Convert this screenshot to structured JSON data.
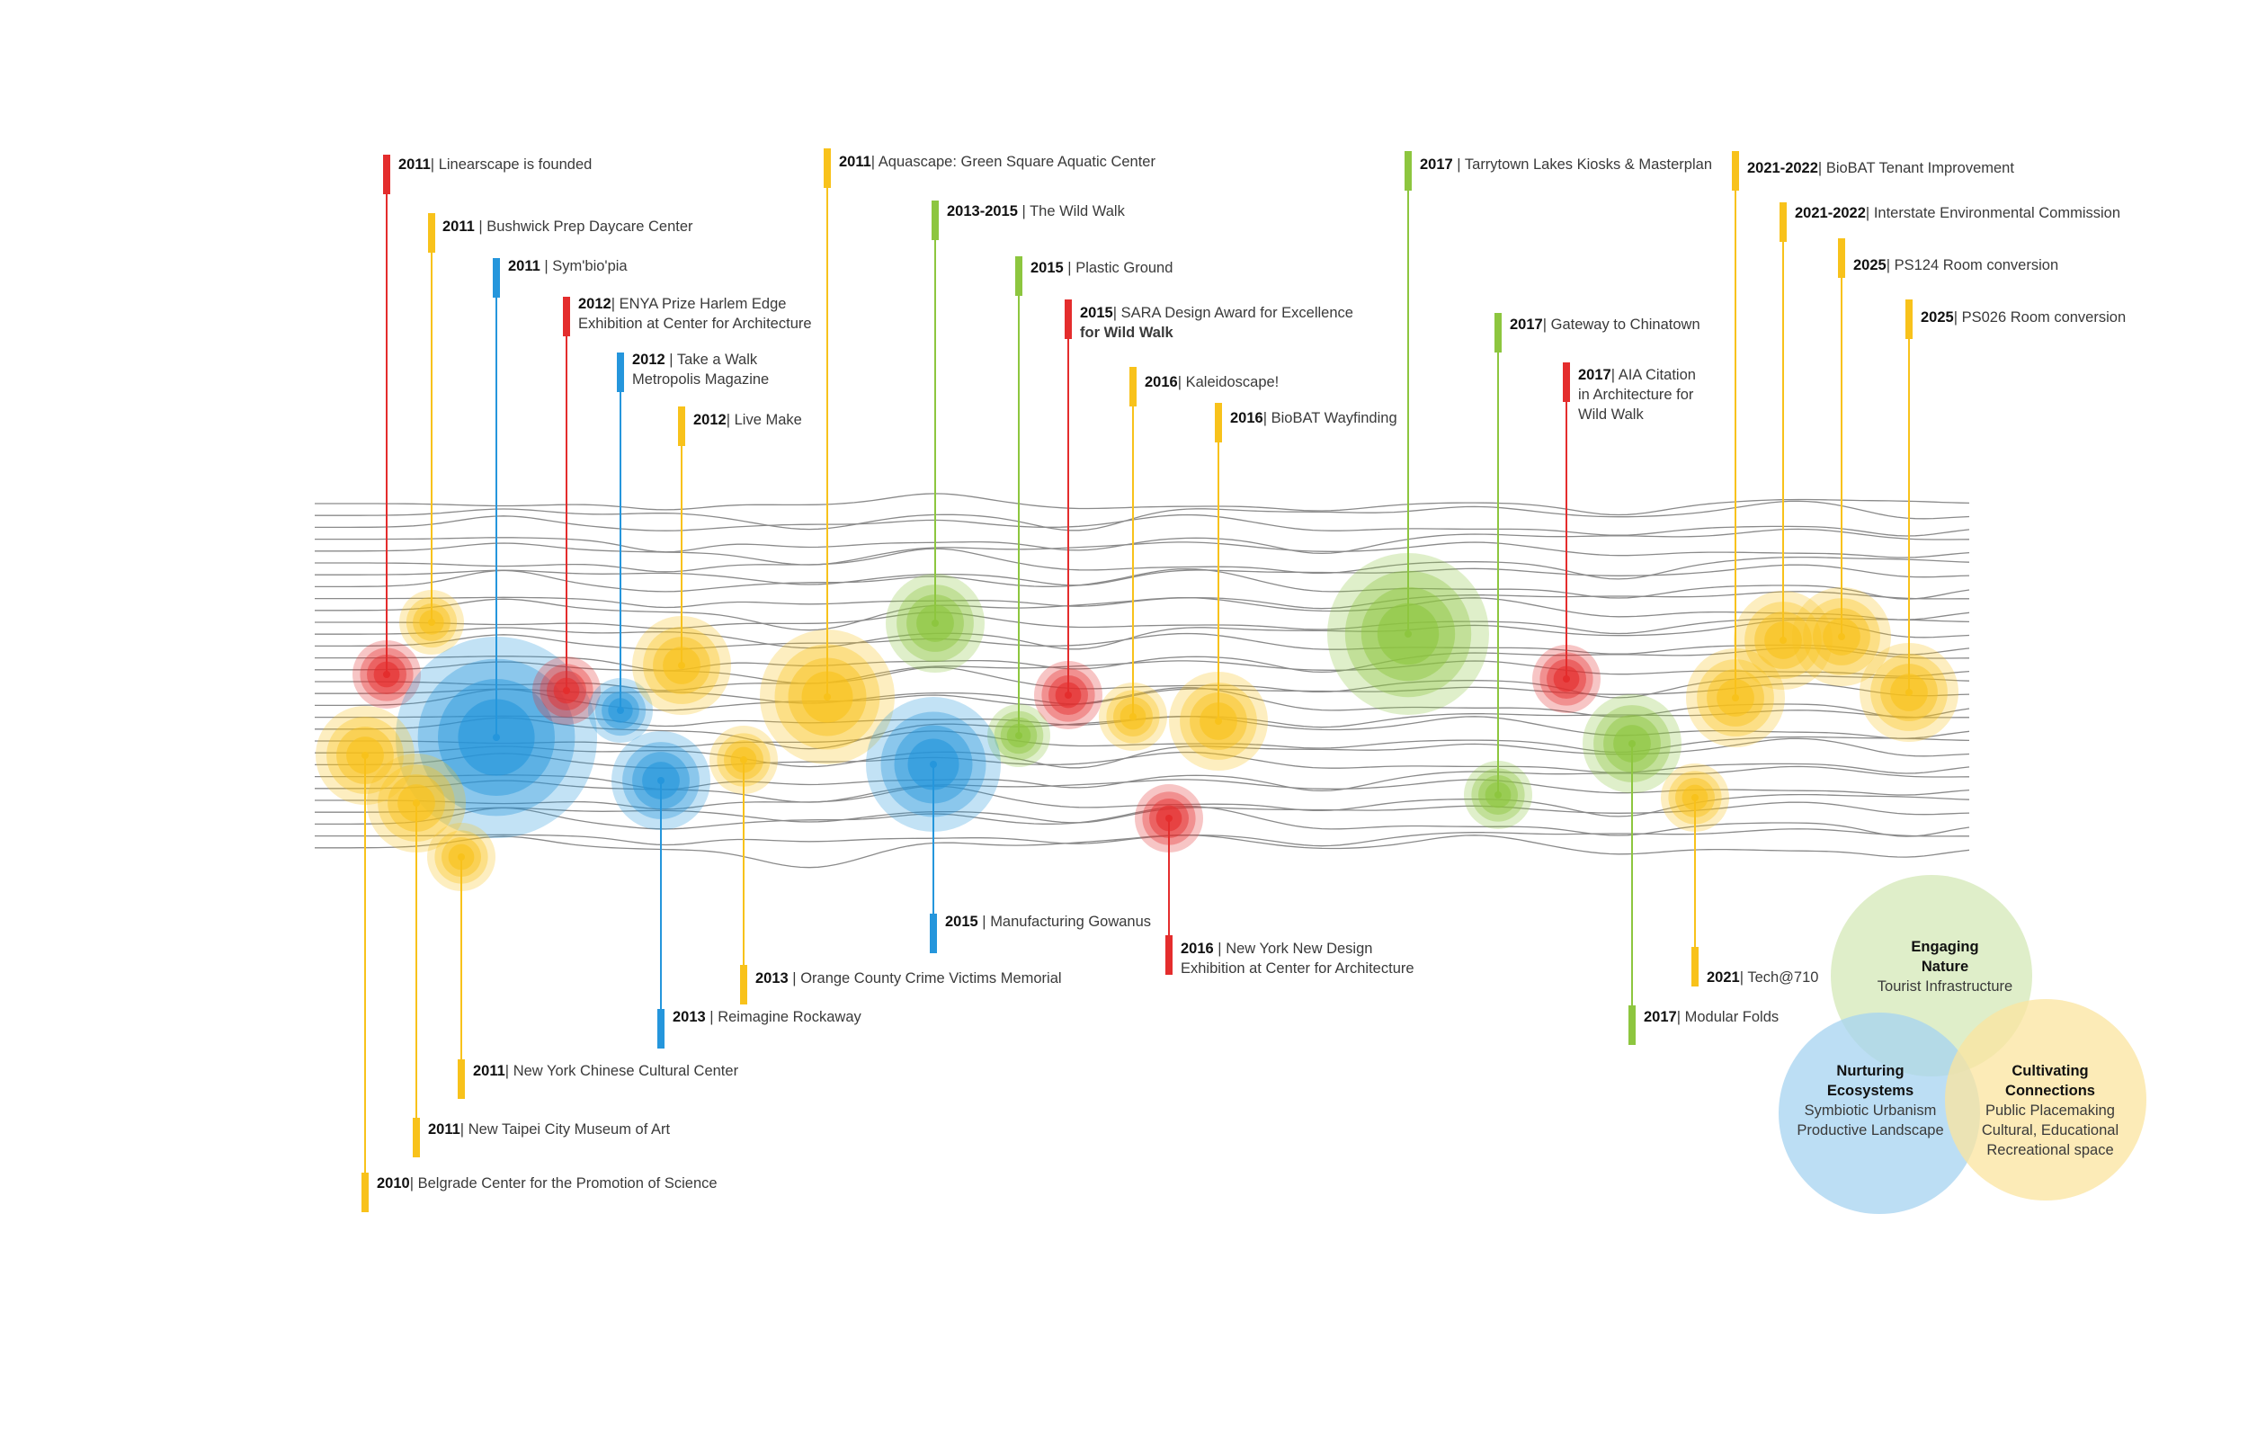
{
  "colors": {
    "red": "#e42d2d",
    "yellow": "#f8c21b",
    "blue": "#2596dc",
    "green": "#8dc63f",
    "stream": "#8a8a8a",
    "venn_green": "#d4e8b7",
    "venn_blue": "#a6d3f0",
    "venn_yellow": "#fbe49f"
  },
  "events": [
    {
      "id": "linearscape",
      "year": "2011",
      "sep": "|",
      "text": "Linearscape is founded",
      "color": "red"
    },
    {
      "id": "bushwick",
      "year": "2011",
      "sep": " |",
      "text": "Bushwick Prep Daycare Center",
      "color": "yellow"
    },
    {
      "id": "symbiopia",
      "year": "2011",
      "sep": " |",
      "text": "Sym'bio'pia",
      "color": "blue"
    },
    {
      "id": "enya",
      "year": "2012",
      "sep": "|",
      "text": "ENYA Prize Harlem Edge",
      "text2": "Exhibition at Center for Architecture",
      "color": "red"
    },
    {
      "id": "takewalk",
      "year": "2012",
      "sep": " |",
      "text": "Take a Walk",
      "text2": "Metropolis Magazine",
      "color": "blue"
    },
    {
      "id": "livemake",
      "year": "2012",
      "sep": "|",
      "text": "Live Make",
      "color": "yellow"
    },
    {
      "id": "aquascape",
      "year": "2011",
      "sep": "|",
      "text": "Aquascape: Green Square Aquatic Center",
      "color": "yellow"
    },
    {
      "id": "wildwalk",
      "year": "2013-2015",
      "sep": " |",
      "text": "The Wild Walk",
      "color": "green"
    },
    {
      "id": "plasticground",
      "year": "2015",
      "sep": " |",
      "text": "Plastic Ground",
      "color": "green"
    },
    {
      "id": "sara",
      "year": "2015",
      "sep": "|",
      "text": "SARA Design Award for Excellence",
      "text2": "for Wild Walk",
      "color": "red"
    },
    {
      "id": "kaleidoscape",
      "year": "2016",
      "sep": "|",
      "text": "Kaleidoscape!",
      "color": "yellow"
    },
    {
      "id": "biobatway",
      "year": "2016",
      "sep": "|",
      "text": "BioBAT Wayfinding",
      "color": "yellow"
    },
    {
      "id": "tarrytown",
      "year": "2017",
      "sep": " |",
      "text": "Tarrytown Lakes Kiosks & Masterplan",
      "color": "green"
    },
    {
      "id": "chinatown",
      "year": "2017",
      "sep": "|",
      "text": "Gateway to Chinatown",
      "color": "green"
    },
    {
      "id": "aia",
      "year": "2017",
      "sep": "|",
      "text": "AIA Citation",
      "text2": "in Architecture for",
      "text3": "Wild Walk",
      "color": "red"
    },
    {
      "id": "biobattenant",
      "year": "2021-2022",
      "sep": "|",
      "text": "BioBAT Tenant Improvement",
      "color": "yellow"
    },
    {
      "id": "interstate",
      "year": "2021-2022",
      "sep": "|",
      "text": "Interstate Environmental Commission",
      "color": "yellow"
    },
    {
      "id": "ps124",
      "year": "2025",
      "sep": "|",
      "text": "PS124 Room conversion",
      "color": "yellow"
    },
    {
      "id": "ps026",
      "year": "2025",
      "sep": "|",
      "text": "PS026 Room conversion",
      "color": "yellow"
    },
    {
      "id": "gowanus",
      "year": "2015",
      "sep": " |",
      "text": "Manufacturing Gowanus",
      "color": "blue"
    },
    {
      "id": "newdesign",
      "year": "2016",
      "sep": " |",
      "text": "New York New Design",
      "text2": "Exhibition at Center for Architecture",
      "color": "red"
    },
    {
      "id": "orangecounty",
      "year": "2013",
      "sep": " |",
      "text": "Orange County Crime Victims Memorial",
      "color": "yellow"
    },
    {
      "id": "rockaway",
      "year": "2013",
      "sep": " |",
      "text": "Reimagine Rockaway",
      "color": "blue"
    },
    {
      "id": "chinesecultural",
      "year": "2011",
      "sep": "|",
      "text": "New York Chinese Cultural Center",
      "color": "yellow"
    },
    {
      "id": "taipei",
      "year": "2011",
      "sep": "|",
      "text": "New Taipei City Museum of Art",
      "color": "yellow"
    },
    {
      "id": "belgrade",
      "year": "2010",
      "sep": "|",
      "text": "Belgrade Center for the Promotion of Science",
      "color": "yellow"
    },
    {
      "id": "tech710",
      "year": "2021",
      "sep": "|",
      "text": "Tech@710",
      "color": "yellow"
    },
    {
      "id": "modularfolds",
      "year": "2017",
      "sep": "|",
      "text": "Modular Folds",
      "color": "green"
    }
  ],
  "venn": {
    "nature": {
      "title": "Engaging\nNature",
      "sub": "Tourist Infrastructure"
    },
    "ecosystems": {
      "title": "Nurturing\nEcosystems",
      "sub": "Symbiotic Urbanism\nProductive Landscape"
    },
    "connections": {
      "title": "Cultivating\nConnections",
      "sub": "Public Placemaking\nCultural, Educational\nRecreational space"
    }
  }
}
